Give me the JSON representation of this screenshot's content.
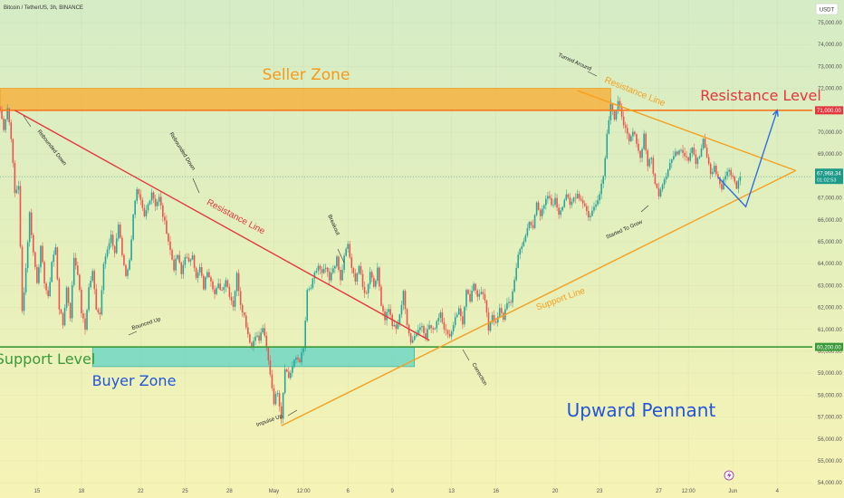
{
  "header": {
    "title": "Bitcoin / TetherUS, 3h, BINANCE",
    "currency": "USDT"
  },
  "colors": {
    "bg_top": "#d6ecc4",
    "bg_bottom": "#f6f2b5",
    "up": "#26a69a",
    "down": "#ef5350",
    "resistance": "#e4373e",
    "support_line": "#f5a020",
    "support_level": "#3a9a3a",
    "seller_zone": "#f7b140",
    "buyer_zone": "#5fd3c4",
    "projection": "#2f6fe0"
  },
  "chart_data": {
    "type": "candlestick",
    "y_axis": {
      "min": 53800,
      "max": 75400,
      "ticks": [
        54000,
        55000,
        56000,
        57000,
        58000,
        59000,
        60000,
        61000,
        62000,
        63000,
        64000,
        65000,
        66000,
        67000,
        68000,
        69000,
        70000,
        71000,
        72000,
        73000,
        74000,
        75000
      ],
      "tick_labels": [
        "54,000.00",
        "55,000.00",
        "56,000.00",
        "57,000.00",
        "58,000.00",
        "59,000.00",
        "60,000.00",
        "61,000.00",
        "62,000.00",
        "63,000.00",
        "64,000.00",
        "65,000.00",
        "66,000.00",
        "67,000.00",
        "68,000.00",
        "69,000.00",
        "70,000.00",
        "71,000.00",
        "72,000.00",
        "73,000.00",
        "74,000.00",
        "75,000.00"
      ]
    },
    "x_axis": {
      "ticks": [
        {
          "label": "15",
          "bar": 20
        },
        {
          "label": "18",
          "bar": 44
        },
        {
          "label": "22",
          "bar": 76
        },
        {
          "label": "25",
          "bar": 100
        },
        {
          "label": "28",
          "bar": 124
        },
        {
          "label": "May",
          "bar": 148
        },
        {
          "label": "12:00",
          "bar": 164
        },
        {
          "label": "6",
          "bar": 188
        },
        {
          "label": "9",
          "bar": 212
        },
        {
          "label": "13",
          "bar": 244
        },
        {
          "label": "16",
          "bar": 268
        },
        {
          "label": "20",
          "bar": 300
        },
        {
          "label": "23",
          "bar": 324
        },
        {
          "label": "27",
          "bar": 356
        },
        {
          "label": "12:00",
          "bar": 372
        },
        {
          "label": "Jun",
          "bar": 396
        },
        {
          "label": "4",
          "bar": 420
        }
      ]
    },
    "anchors": [
      [
        0,
        71000
      ],
      [
        2,
        70200
      ],
      [
        4,
        71100
      ],
      [
        6,
        69800
      ],
      [
        8,
        67200
      ],
      [
        10,
        67600
      ],
      [
        12,
        61800
      ],
      [
        14,
        63800
      ],
      [
        16,
        66300
      ],
      [
        18,
        64500
      ],
      [
        20,
        63200
      ],
      [
        22,
        64700
      ],
      [
        24,
        63200
      ],
      [
        26,
        62400
      ],
      [
        28,
        64100
      ],
      [
        30,
        64700
      ],
      [
        32,
        62000
      ],
      [
        34,
        61200
      ],
      [
        36,
        62900
      ],
      [
        38,
        61600
      ],
      [
        40,
        64300
      ],
      [
        42,
        63600
      ],
      [
        44,
        61800
      ],
      [
        46,
        61000
      ],
      [
        48,
        62900
      ],
      [
        50,
        63600
      ],
      [
        52,
        62000
      ],
      [
        54,
        61700
      ],
      [
        56,
        64100
      ],
      [
        58,
        64600
      ],
      [
        60,
        65200
      ],
      [
        62,
        64500
      ],
      [
        64,
        65800
      ],
      [
        66,
        64400
      ],
      [
        68,
        63500
      ],
      [
        70,
        64100
      ],
      [
        72,
        66300
      ],
      [
        74,
        67300
      ],
      [
        76,
        66800
      ],
      [
        78,
        66100
      ],
      [
        80,
        66700
      ],
      [
        82,
        67300
      ],
      [
        84,
        66700
      ],
      [
        86,
        67000
      ],
      [
        88,
        66200
      ],
      [
        90,
        65500
      ],
      [
        92,
        64600
      ],
      [
        94,
        63800
      ],
      [
        96,
        64400
      ],
      [
        98,
        63500
      ],
      [
        100,
        64400
      ],
      [
        102,
        64000
      ],
      [
        104,
        64500
      ],
      [
        106,
        63300
      ],
      [
        108,
        63800
      ],
      [
        110,
        62900
      ],
      [
        112,
        63700
      ],
      [
        114,
        63300
      ],
      [
        116,
        62600
      ],
      [
        118,
        63000
      ],
      [
        120,
        62800
      ],
      [
        122,
        63300
      ],
      [
        124,
        62600
      ],
      [
        126,
        62100
      ],
      [
        128,
        63500
      ],
      [
        130,
        62200
      ],
      [
        132,
        61600
      ],
      [
        134,
        60800
      ],
      [
        136,
        60200
      ],
      [
        138,
        60800
      ],
      [
        140,
        60500
      ],
      [
        142,
        61100
      ],
      [
        144,
        60100
      ],
      [
        146,
        59000
      ],
      [
        148,
        57700
      ],
      [
        150,
        58200
      ],
      [
        152,
        57000
      ],
      [
        154,
        59300
      ],
      [
        156,
        58800
      ],
      [
        158,
        59300
      ],
      [
        160,
        59700
      ],
      [
        162,
        59600
      ],
      [
        164,
        60100
      ],
      [
        166,
        62700
      ],
      [
        168,
        62900
      ],
      [
        170,
        63500
      ],
      [
        172,
        63900
      ],
      [
        174,
        63500
      ],
      [
        176,
        63800
      ],
      [
        178,
        63200
      ],
      [
        180,
        63800
      ],
      [
        182,
        64200
      ],
      [
        184,
        63200
      ],
      [
        186,
        64300
      ],
      [
        188,
        64900
      ],
      [
        190,
        63700
      ],
      [
        192,
        63300
      ],
      [
        194,
        63900
      ],
      [
        196,
        62900
      ],
      [
        198,
        62600
      ],
      [
        200,
        63700
      ],
      [
        202,
        63000
      ],
      [
        204,
        63700
      ],
      [
        206,
        62200
      ],
      [
        208,
        61500
      ],
      [
        210,
        62000
      ],
      [
        212,
        61200
      ],
      [
        214,
        61000
      ],
      [
        216,
        61600
      ],
      [
        218,
        62800
      ],
      [
        220,
        61100
      ],
      [
        222,
        60500
      ],
      [
        224,
        60700
      ],
      [
        226,
        61000
      ],
      [
        228,
        61200
      ],
      [
        230,
        60700
      ],
      [
        232,
        61200
      ],
      [
        234,
        60900
      ],
      [
        236,
        61400
      ],
      [
        238,
        61800
      ],
      [
        240,
        61100
      ],
      [
        242,
        60700
      ],
      [
        244,
        60900
      ],
      [
        246,
        61600
      ],
      [
        248,
        61900
      ],
      [
        250,
        61300
      ],
      [
        252,
        62700
      ],
      [
        254,
        62300
      ],
      [
        256,
        63000
      ],
      [
        258,
        62600
      ],
      [
        260,
        62800
      ],
      [
        262,
        62300
      ],
      [
        264,
        61000
      ],
      [
        266,
        61700
      ],
      [
        268,
        61200
      ],
      [
        270,
        61900
      ],
      [
        272,
        61500
      ],
      [
        274,
        62300
      ],
      [
        276,
        62100
      ],
      [
        278,
        63300
      ],
      [
        280,
        64400
      ],
      [
        282,
        64900
      ],
      [
        284,
        65200
      ],
      [
        286,
        65900
      ],
      [
        288,
        65600
      ],
      [
        290,
        66900
      ],
      [
        292,
        66200
      ],
      [
        294,
        66600
      ],
      [
        296,
        67100
      ],
      [
        298,
        66700
      ],
      [
        300,
        66900
      ],
      [
        302,
        66300
      ],
      [
        304,
        66700
      ],
      [
        306,
        67200
      ],
      [
        308,
        66600
      ],
      [
        310,
        67000
      ],
      [
        312,
        67200
      ],
      [
        314,
        66900
      ],
      [
        316,
        66700
      ],
      [
        318,
        66100
      ],
      [
        320,
        66400
      ],
      [
        322,
        66700
      ],
      [
        324,
        67300
      ],
      [
        326,
        68000
      ],
      [
        328,
        69900
      ],
      [
        330,
        71400
      ],
      [
        332,
        70600
      ],
      [
        334,
        71300
      ],
      [
        336,
        70800
      ],
      [
        338,
        70100
      ],
      [
        340,
        69500
      ],
      [
        342,
        70000
      ],
      [
        344,
        69600
      ],
      [
        346,
        68800
      ],
      [
        348,
        69900
      ],
      [
        350,
        68500
      ],
      [
        352,
        68800
      ],
      [
        354,
        67600
      ],
      [
        356,
        67200
      ],
      [
        358,
        67700
      ],
      [
        360,
        68100
      ],
      [
        362,
        68600
      ],
      [
        364,
        68900
      ],
      [
        366,
        69100
      ],
      [
        368,
        69300
      ],
      [
        370,
        69000
      ],
      [
        372,
        68800
      ],
      [
        374,
        69400
      ],
      [
        376,
        68600
      ],
      [
        378,
        68900
      ],
      [
        380,
        69600
      ],
      [
        382,
        68900
      ],
      [
        384,
        68100
      ],
      [
        386,
        68400
      ],
      [
        388,
        67900
      ],
      [
        390,
        67400
      ],
      [
        392,
        68100
      ],
      [
        394,
        68300
      ],
      [
        396,
        67900
      ],
      [
        398,
        67500
      ],
      [
        400,
        67968
      ]
    ],
    "last_price": "67,968.34",
    "countdown": "01:02:53",
    "resistance_level": {
      "value": 71000,
      "label": "71,000.00",
      "text": "Resistance Level"
    },
    "support_level": {
      "value": 60200,
      "label": "60,200.00",
      "text": "Support Level"
    },
    "seller_zone": {
      "from_bar": 0,
      "to_bar": 330,
      "low": 71000,
      "high": 72000,
      "text": "Seller Zone"
    },
    "buyer_zone": {
      "from_bar": 50,
      "to_bar": 224,
      "low": 59300,
      "high": 60200,
      "text": "Buyer Zone"
    },
    "resistance_line": {
      "from": [
        8,
        71000
      ],
      "to": [
        232,
        60500
      ],
      "text": "Resistance Line"
    },
    "support_line": {
      "from": [
        152,
        56600
      ],
      "to": [
        430,
        68250
      ],
      "text": "Support Line"
    },
    "pennant_upper": {
      "from": [
        312,
        71900
      ],
      "to": [
        430,
        68250
      ],
      "text": "Resistance Line"
    },
    "projection": [
      [
        388,
        67950
      ],
      [
        403,
        66600
      ],
      [
        420,
        71000
      ]
    ],
    "chart_title": "Upward Pennant",
    "annotations": [
      {
        "text": "Rebounded Down",
        "bar": 14,
        "price": 70000,
        "angle": 50
      },
      {
        "text": "Rebounded Down",
        "bar": 84,
        "price": 69600,
        "angle": 55
      },
      {
        "text": "Bounced Up",
        "bar": 68,
        "price": 61000,
        "angle": -18
      },
      {
        "text": "Breakout",
        "bar": 164,
        "price": 65400,
        "angle": 65
      },
      {
        "text": "Impulse Up",
        "bar": 130,
        "price": 56800,
        "angle": -20
      },
      {
        "text": "Correction",
        "bar": 236,
        "price": 58700,
        "angle": 60
      },
      {
        "text": "Support Line",
        "bar": 278,
        "price": 61700,
        "angle": -18
      },
      {
        "text": "Started To Grow",
        "bar": 300,
        "price": 65400,
        "angle": -22
      },
      {
        "text": "Turned Around",
        "bar": 284,
        "price": 73100,
        "angle": 24
      }
    ]
  }
}
